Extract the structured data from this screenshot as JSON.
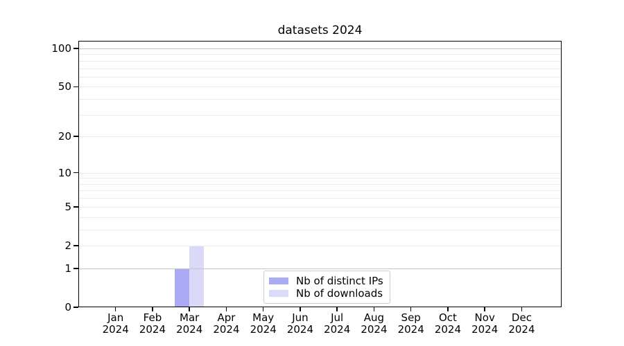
{
  "chart_data": {
    "type": "bar",
    "title": "datasets 2024",
    "categories": [
      "Jan",
      "Feb",
      "Mar",
      "Apr",
      "May",
      "Jun",
      "Jul",
      "Aug",
      "Sep",
      "Oct",
      "Nov",
      "Dec"
    ],
    "x_year_label": "2024",
    "series": [
      {
        "name": "Nb of distinct IPs",
        "color": "#aaaaf5",
        "values": [
          0,
          0,
          1,
          0,
          0,
          0,
          0,
          0,
          0,
          0,
          0,
          0
        ]
      },
      {
        "name": "Nb of downloads",
        "color": "#dadaf8",
        "values": [
          0,
          0,
          2,
          0,
          0,
          0,
          0,
          0,
          0,
          0,
          0,
          0
        ]
      }
    ],
    "yscale": "log1p",
    "ylim": [
      0,
      114.6
    ],
    "yticks": [
      {
        "value": 0,
        "label": "0"
      },
      {
        "value": 1,
        "label": "1"
      },
      {
        "value": 2,
        "label": "2"
      },
      {
        "value": 5,
        "label": "5"
      },
      {
        "value": 10,
        "label": "10"
      },
      {
        "value": 20,
        "label": "20"
      },
      {
        "value": 50,
        "label": "50"
      },
      {
        "value": 100,
        "label": "100"
      }
    ],
    "minor_yticks": [
      3,
      4,
      6,
      7,
      8,
      9,
      30,
      40,
      60,
      70,
      80,
      90
    ],
    "emphasized_gridlines": [
      1,
      100
    ],
    "grid": true,
    "legend_position": "lower center",
    "colors": {
      "gridline_major": "#c3c3c3",
      "gridline_minor": "#eaeaea",
      "axis": "#000000"
    }
  }
}
